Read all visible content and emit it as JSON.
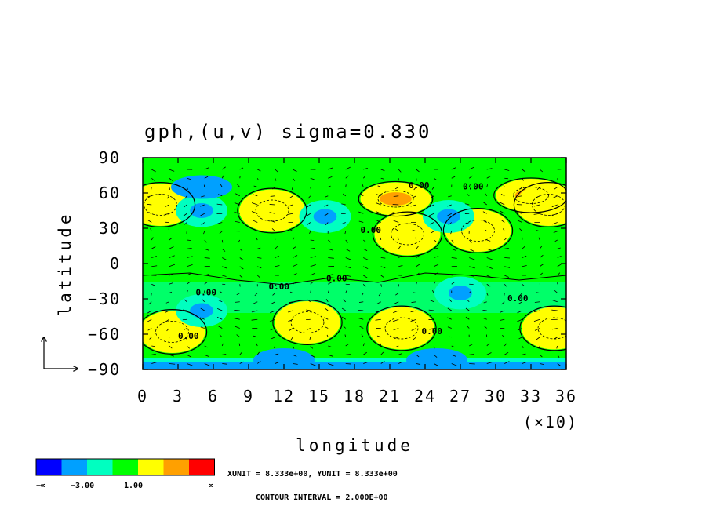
{
  "chart_data": {
    "type": "heatmap",
    "title": "gph,(u,v) sigma=0.830",
    "xlabel": "longitude",
    "ylabel": "latitude",
    "x_multiplier_label": "(×10)",
    "xlim": [
      0,
      36
    ],
    "ylim": [
      -90,
      90
    ],
    "x_ticks": [
      0,
      3,
      6,
      9,
      12,
      15,
      18,
      21,
      24,
      27,
      30,
      33,
      36
    ],
    "x_tick_labels": [
      "0",
      "3",
      "6",
      "9",
      "12",
      "15",
      "18",
      "21",
      "24",
      "27",
      "30",
      "33",
      "36"
    ],
    "y_ticks": [
      90,
      60,
      30,
      0,
      -30,
      -60,
      -90
    ],
    "y_tick_labels": [
      "90",
      "60",
      "30",
      "0",
      "−30",
      "−60",
      "−90"
    ],
    "colorbar": {
      "colors": [
        "#0000ff",
        "#00a0ff",
        "#00ffc0",
        "#00ff00",
        "#ffff00",
        "#ffa000",
        "#ff0000"
      ],
      "labels": [
        "−∞",
        "−3.00",
        "1.00",
        "∞"
      ]
    },
    "footnote_units": "XUNIT = 8.333e+00, YUNIT = 8.333e+00",
    "footnote_contour": "CONTOUR INTERVAL = 2.000E+00",
    "contour_label": "0.00",
    "features": [
      {
        "x": 11,
        "y": 45,
        "level": 4,
        "name": "high"
      },
      {
        "x": 21.5,
        "y": 55,
        "level": 5,
        "name": "high"
      },
      {
        "x": 22.5,
        "y": 25,
        "level": 4,
        "name": "high"
      },
      {
        "x": 28.5,
        "y": 28,
        "level": 4,
        "name": "high"
      },
      {
        "x": 33,
        "y": 58,
        "level": 5,
        "name": "high"
      },
      {
        "x": 34.5,
        "y": 50,
        "level": 4,
        "name": "high"
      },
      {
        "x": 1.5,
        "y": 50,
        "level": 4,
        "name": "high"
      },
      {
        "x": 14,
        "y": -50,
        "level": 4,
        "name": "high"
      },
      {
        "x": 22,
        "y": -55,
        "level": 4,
        "name": "high"
      },
      {
        "x": 2.5,
        "y": -58,
        "level": 4,
        "name": "high"
      },
      {
        "x": 35,
        "y": -55,
        "level": 4,
        "name": "high"
      },
      {
        "x": 5,
        "y": 45,
        "level": 2,
        "name": "low"
      },
      {
        "x": 5,
        "y": 65,
        "level": 1,
        "name": "low"
      },
      {
        "x": 15.5,
        "y": 40,
        "level": 2,
        "name": "low"
      },
      {
        "x": 26,
        "y": 40,
        "level": 2,
        "name": "low"
      },
      {
        "x": 5,
        "y": -40,
        "level": 2,
        "name": "low"
      },
      {
        "x": 27,
        "y": -25,
        "level": 2,
        "name": "low"
      },
      {
        "x": 12,
        "y": -82,
        "level": 1,
        "name": "low"
      },
      {
        "x": 25,
        "y": -82,
        "level": 1,
        "name": "low"
      }
    ]
  }
}
